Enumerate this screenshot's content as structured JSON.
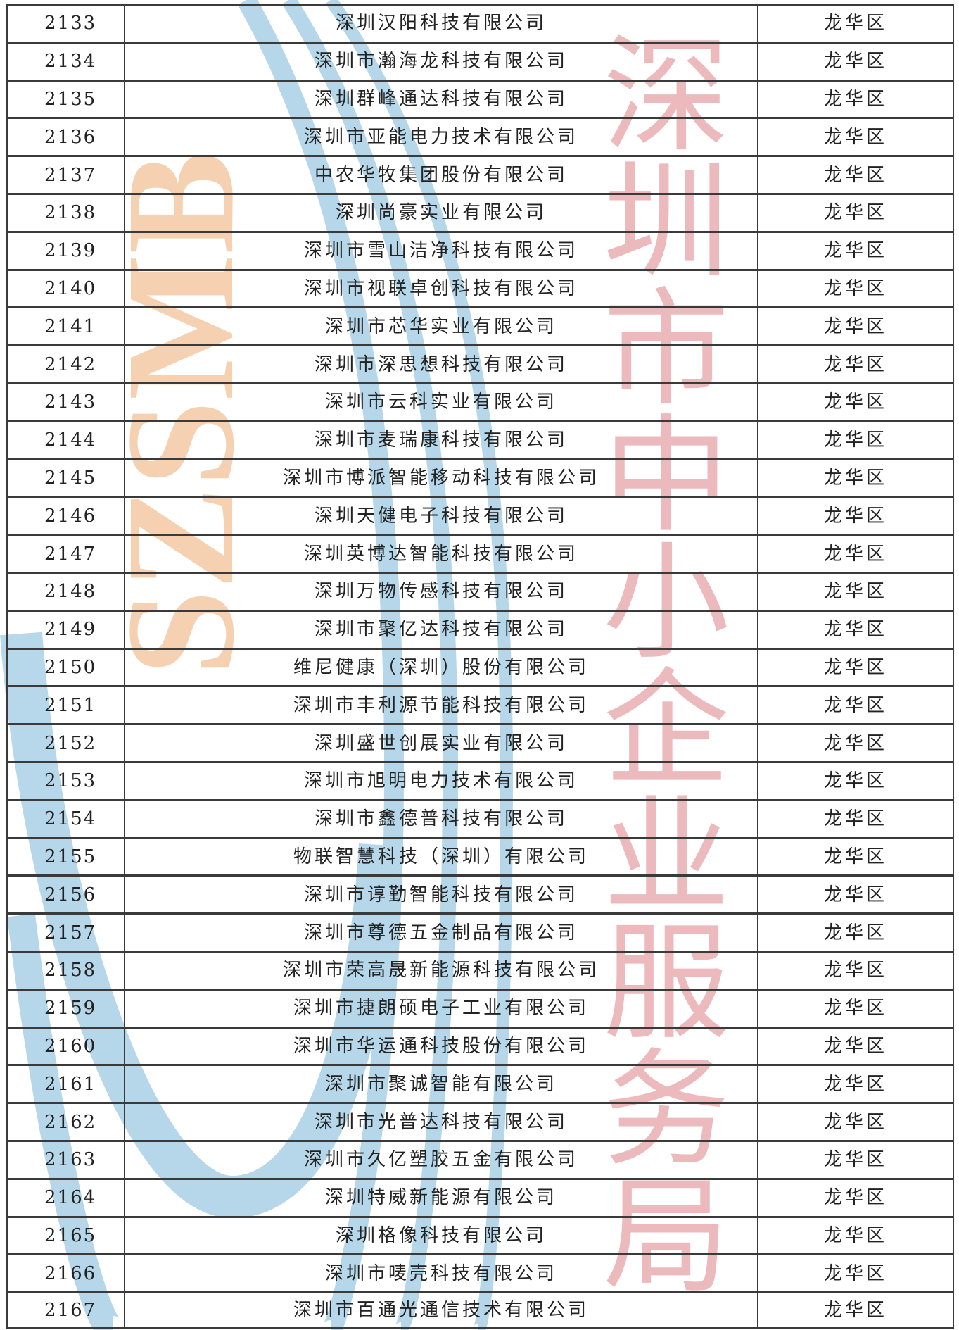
{
  "watermark": {
    "latin_text": "SZSMB",
    "chinese_text": "深圳市中小企业服务局",
    "colors": {
      "orange": "#f4c9a4",
      "red": "#e8a9ad",
      "blue": "#a9d1e6"
    }
  },
  "rows": [
    {
      "no": "2133",
      "company": "深圳汉阳科技有限公司",
      "district": "龙华区"
    },
    {
      "no": "2134",
      "company": "深圳市瀚海龙科技有限公司",
      "district": "龙华区"
    },
    {
      "no": "2135",
      "company": "深圳群峰通达科技有限公司",
      "district": "龙华区"
    },
    {
      "no": "2136",
      "company": "深圳市亚能电力技术有限公司",
      "district": "龙华区"
    },
    {
      "no": "2137",
      "company": "中农华牧集团股份有限公司",
      "district": "龙华区"
    },
    {
      "no": "2138",
      "company": "深圳尚豪实业有限公司",
      "district": "龙华区"
    },
    {
      "no": "2139",
      "company": "深圳市雪山洁净科技有限公司",
      "district": "龙华区"
    },
    {
      "no": "2140",
      "company": "深圳市视联卓创科技有限公司",
      "district": "龙华区"
    },
    {
      "no": "2141",
      "company": "深圳市芯华实业有限公司",
      "district": "龙华区"
    },
    {
      "no": "2142",
      "company": "深圳市深思想科技有限公司",
      "district": "龙华区"
    },
    {
      "no": "2143",
      "company": "深圳市云科实业有限公司",
      "district": "龙华区"
    },
    {
      "no": "2144",
      "company": "深圳市麦瑞康科技有限公司",
      "district": "龙华区"
    },
    {
      "no": "2145",
      "company": "深圳市博派智能移动科技有限公司",
      "district": "龙华区"
    },
    {
      "no": "2146",
      "company": "深圳天健电子科技有限公司",
      "district": "龙华区"
    },
    {
      "no": "2147",
      "company": "深圳英博达智能科技有限公司",
      "district": "龙华区"
    },
    {
      "no": "2148",
      "company": "深圳万物传感科技有限公司",
      "district": "龙华区"
    },
    {
      "no": "2149",
      "company": "深圳市聚亿达科技有限公司",
      "district": "龙华区"
    },
    {
      "no": "2150",
      "company": "维尼健康（深圳）股份有限公司",
      "district": "龙华区"
    },
    {
      "no": "2151",
      "company": "深圳市丰利源节能科技有限公司",
      "district": "龙华区"
    },
    {
      "no": "2152",
      "company": "深圳盛世创展实业有限公司",
      "district": "龙华区"
    },
    {
      "no": "2153",
      "company": "深圳市旭明电力技术有限公司",
      "district": "龙华区"
    },
    {
      "no": "2154",
      "company": "深圳市鑫德普科技有限公司",
      "district": "龙华区"
    },
    {
      "no": "2155",
      "company": "物联智慧科技（深圳）有限公司",
      "district": "龙华区"
    },
    {
      "no": "2156",
      "company": "深圳市谆勤智能科技有限公司",
      "district": "龙华区"
    },
    {
      "no": "2157",
      "company": "深圳市尊德五金制品有限公司",
      "district": "龙华区"
    },
    {
      "no": "2158",
      "company": "深圳市荣高晟新能源科技有限公司",
      "district": "龙华区"
    },
    {
      "no": "2159",
      "company": "深圳市捷朗硕电子工业有限公司",
      "district": "龙华区"
    },
    {
      "no": "2160",
      "company": "深圳市华运通科技股份有限公司",
      "district": "龙华区"
    },
    {
      "no": "2161",
      "company": "深圳市聚诚智能有限公司",
      "district": "龙华区"
    },
    {
      "no": "2162",
      "company": "深圳市光普达科技有限公司",
      "district": "龙华区"
    },
    {
      "no": "2163",
      "company": "深圳市久亿塑胶五金有限公司",
      "district": "龙华区"
    },
    {
      "no": "2164",
      "company": "深圳特威新能源有限公司",
      "district": "龙华区"
    },
    {
      "no": "2165",
      "company": "深圳格像科技有限公司",
      "district": "龙华区"
    },
    {
      "no": "2166",
      "company": "深圳市唛壳科技有限公司",
      "district": "龙华区"
    },
    {
      "no": "2167",
      "company": "深圳市百通光通信技术有限公司",
      "district": "龙华区"
    }
  ]
}
